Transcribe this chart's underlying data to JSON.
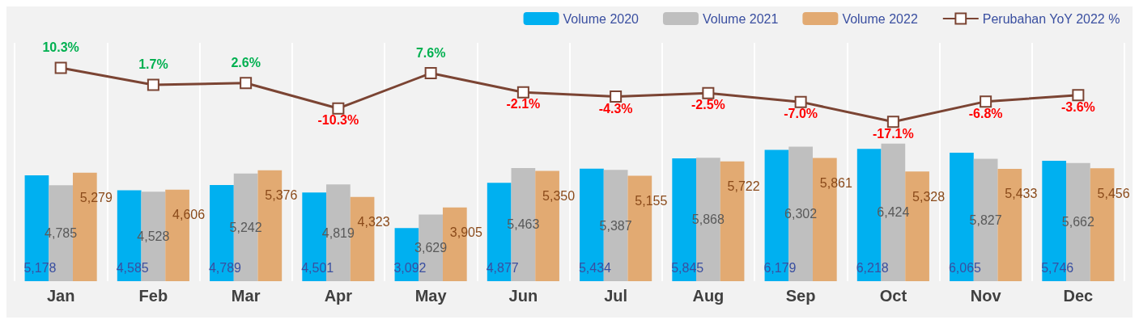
{
  "chart_data": {
    "type": "bar",
    "categories": [
      "Jan",
      "Feb",
      "Mar",
      "Apr",
      "May",
      "Jun",
      "Jul",
      "Aug",
      "Sep",
      "Oct",
      "Nov",
      "Dec"
    ],
    "series": [
      {
        "name": "Volume 2020",
        "color": "#00b0f0",
        "values": [
          5178,
          4585,
          4789,
          4501,
          3092,
          4877,
          5434,
          5845,
          6179,
          6218,
          6065,
          5746
        ],
        "value_labels": [
          "5,178",
          "4,585",
          "4,789",
          "4,501",
          "3,092",
          "4,877",
          "5,434",
          "5,845",
          "6,179",
          "6,218",
          "6,065",
          "5,746"
        ]
      },
      {
        "name": "Volume 2021",
        "color": "#bfbfbf",
        "values": [
          4785,
          4528,
          5242,
          4819,
          3629,
          5463,
          5387,
          5868,
          6302,
          6424,
          5827,
          5662
        ],
        "value_labels": [
          "4,785",
          "4,528",
          "5,242",
          "4,819",
          "3,629",
          "5,463",
          "5,387",
          "5,868",
          "6,302",
          "6,424",
          "5,827",
          "5,662"
        ]
      },
      {
        "name": "Volume 2022",
        "color": "#e2aa72",
        "values": [
          5279,
          4606,
          5376,
          4323,
          3905,
          5350,
          5155,
          5722,
          5861,
          5328,
          5433,
          5456
        ],
        "value_labels": [
          "5,279",
          "4,606",
          "5,376",
          "4,323",
          "3,905",
          "5,350",
          "5,155",
          "5,722",
          "5,861",
          "5,328",
          "5,433",
          "5,456"
        ]
      },
      {
        "name": "Perubahan YoY 2022 %",
        "type": "line",
        "axis": "y2",
        "color": "#7b4433",
        "values": [
          10.3,
          1.7,
          2.6,
          -10.3,
          7.6,
          -2.1,
          -4.3,
          -2.5,
          -7.0,
          -17.1,
          -6.8,
          -3.6
        ],
        "value_labels": [
          "10.3%",
          "1.7%",
          "2.6%",
          "-10.3%",
          "7.6%",
          "-2.1%",
          "-4.3%",
          "-2.5%",
          "-7.0%",
          "-17.1%",
          "-6.8%",
          "-3.6%"
        ],
        "marker": "square"
      }
    ],
    "ylim": [
      1000,
      10400
    ],
    "y2lim": [
      -98,
      23
    ],
    "grid": "x",
    "legend": "top right"
  }
}
